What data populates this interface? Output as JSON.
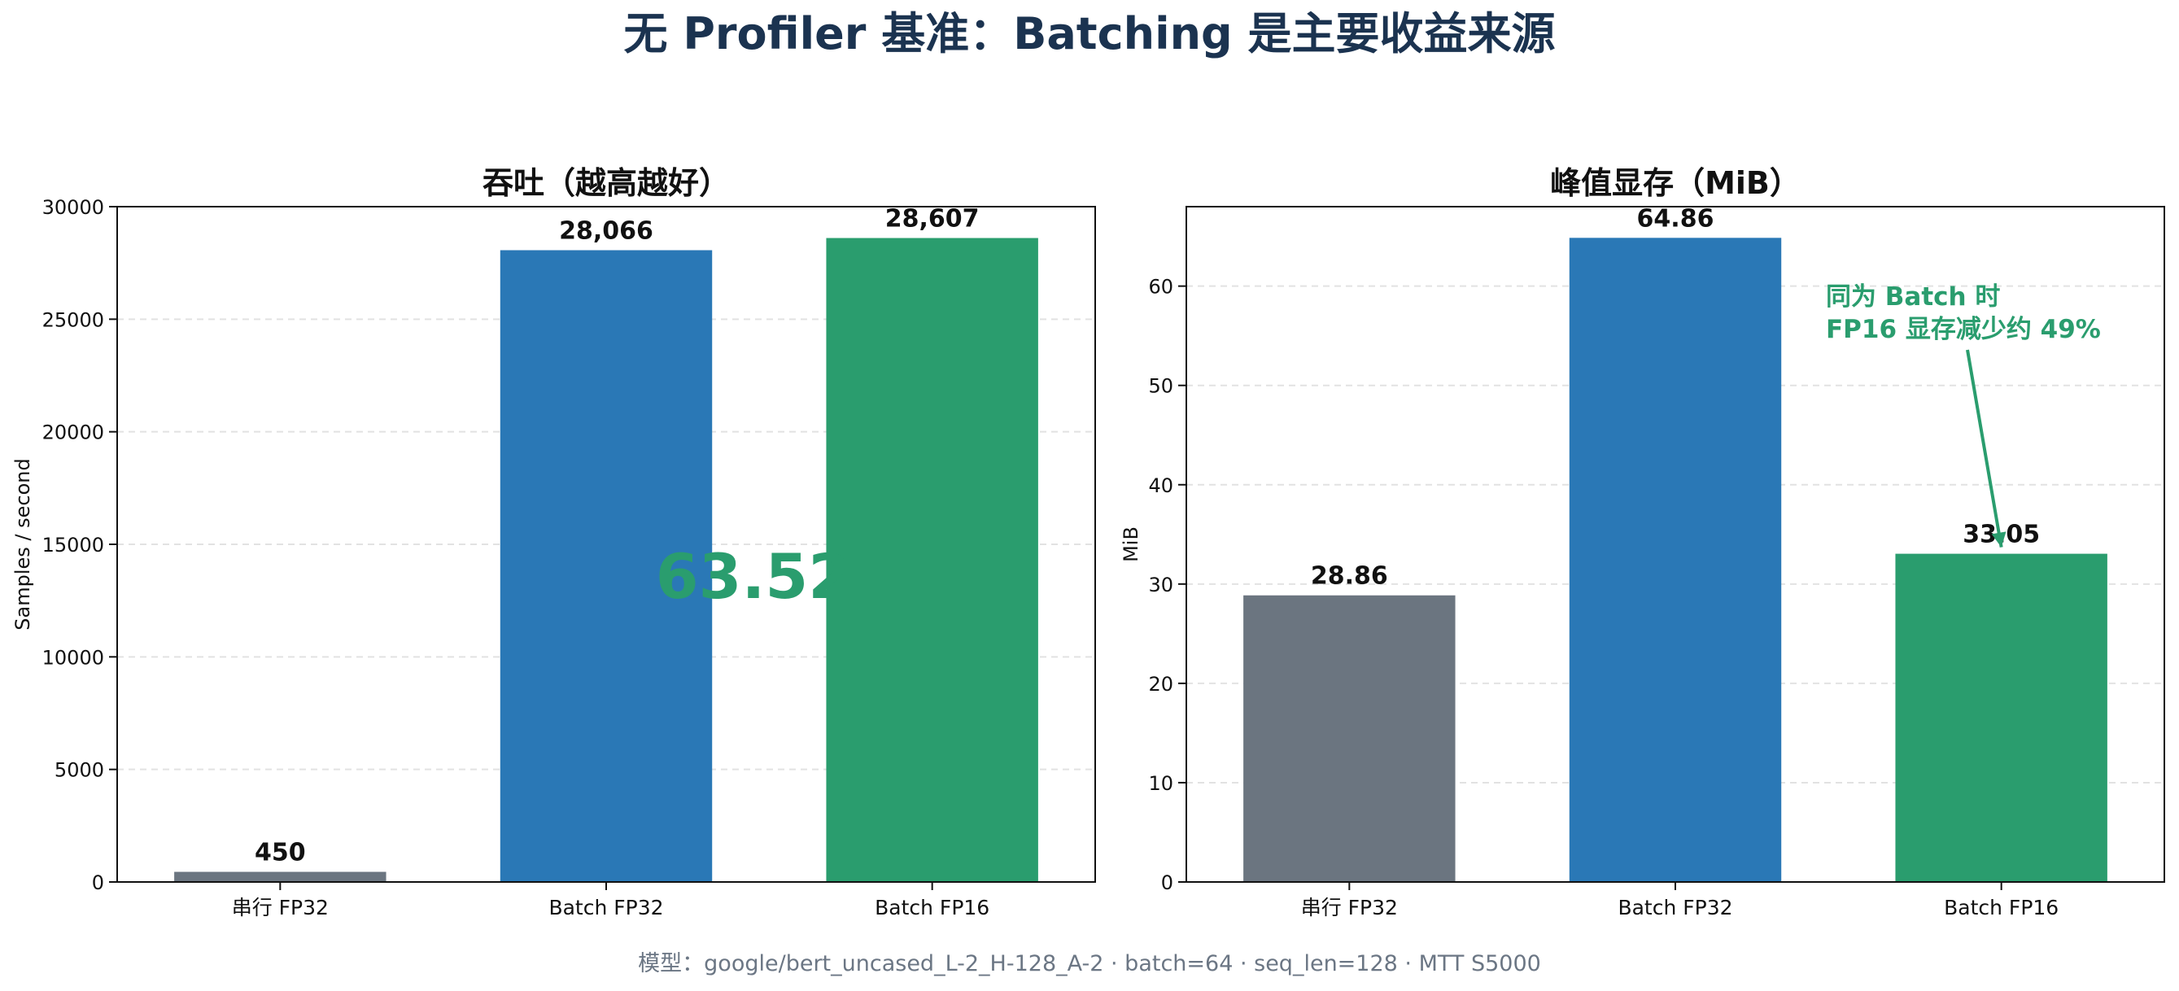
{
  "figure": {
    "title": "无 Profiler 基准：Batching 是主要收益来源",
    "footnote": "模型：google/bert_uncased_L-2_H-128_A-2 · batch=64 · seq_len=128 · MTT S5000"
  },
  "colors": {
    "title": "#1b3350",
    "serial": "#6b7580",
    "batch_fp32": "#2a78b6",
    "batch_fp16": "#2a9d6e",
    "grid": "#e2e2e2",
    "footnote": "#6b7684"
  },
  "chart_data": [
    {
      "type": "bar",
      "title": "吞吐（越高越好）",
      "xlabel": "",
      "ylabel": "Samples / second",
      "categories": [
        "串行 FP32",
        "Batch FP32",
        "Batch FP16"
      ],
      "values": [
        450,
        28066,
        28607
      ],
      "value_labels": [
        "450",
        "28,066",
        "28,607"
      ],
      "ylim": [
        0,
        30000
      ],
      "yticks": [
        0,
        5000,
        10000,
        15000,
        20000,
        25000,
        30000
      ],
      "grid": true,
      "overlay_text": "63.52"
    },
    {
      "type": "bar",
      "title": "峰值显存（MiB）",
      "xlabel": "",
      "ylabel": "MiB",
      "categories": [
        "串行 FP32",
        "Batch FP32",
        "Batch FP16"
      ],
      "values": [
        28.86,
        64.86,
        33.05
      ],
      "value_labels": [
        "28.86",
        "64.86",
        "33.05"
      ],
      "ylim": [
        0,
        68
      ],
      "yticks": [
        0,
        10,
        20,
        30,
        40,
        50,
        60
      ],
      "grid": true,
      "annotation": {
        "lines": [
          "同为 Batch 时",
          "FP16 显存减少约 49%"
        ],
        "points_to": "Batch FP16"
      }
    }
  ]
}
